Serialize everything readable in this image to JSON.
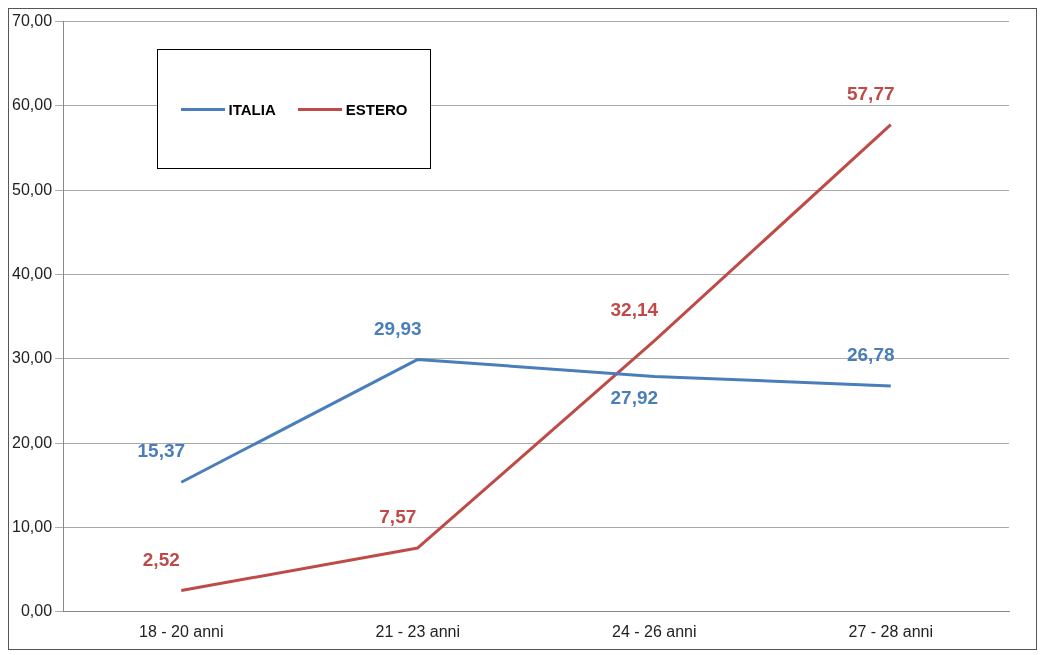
{
  "chart_data": {
    "type": "line",
    "categories": [
      "18 - 20 anni",
      "21 - 23 anni",
      "24 - 26 anni",
      "27 - 28 anni"
    ],
    "series": [
      {
        "name": "ITALIA",
        "color": "#4a7ebb",
        "values": [
          15.37,
          29.93,
          27.92,
          26.78
        ],
        "value_labels": [
          "15,37",
          "29,93",
          "27,92",
          "26,78"
        ]
      },
      {
        "name": "ESTERO",
        "color": "#be4b48",
        "values": [
          2.52,
          7.57,
          32.14,
          57.77
        ],
        "value_labels": [
          "2,52",
          "7,57",
          "32,14",
          "57,77"
        ]
      }
    ],
    "ylim": [
      0,
      70
    ],
    "yticks": [
      {
        "value": 0,
        "label": "0,00"
      },
      {
        "value": 10,
        "label": "10,00"
      },
      {
        "value": 20,
        "label": "20,00"
      },
      {
        "value": 30,
        "label": "30,00"
      },
      {
        "value": 40,
        "label": "40,00"
      },
      {
        "value": 50,
        "label": "50,00"
      },
      {
        "value": 60,
        "label": "60,00"
      },
      {
        "value": 70,
        "label": "70,00"
      }
    ],
    "grid": "y",
    "legend": "top left",
    "marker": "none",
    "line_style": "solid"
  }
}
